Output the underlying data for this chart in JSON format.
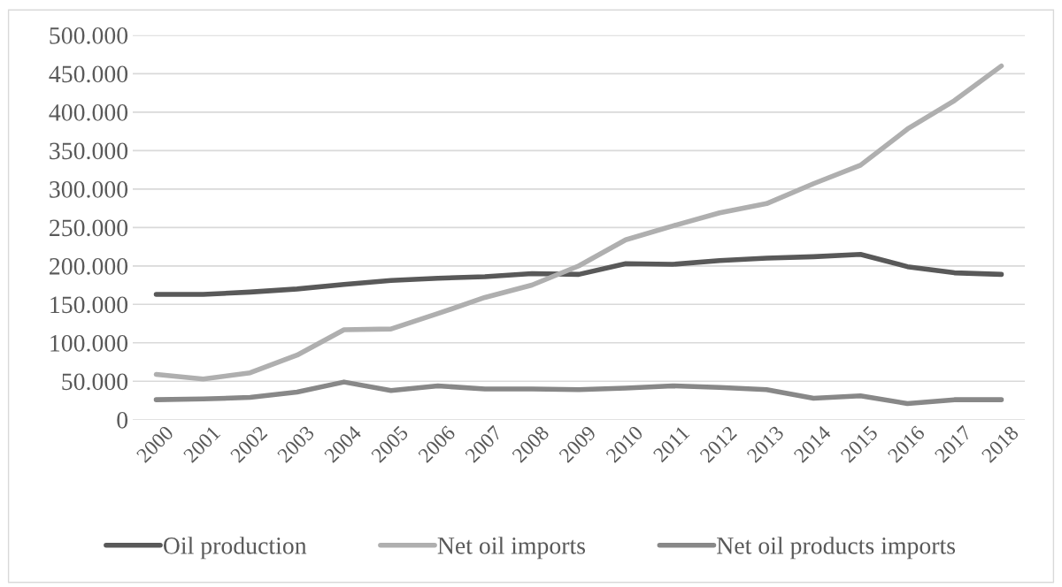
{
  "chart_data": {
    "type": "line",
    "categories": [
      "2000",
      "2001",
      "2002",
      "2003",
      "2004",
      "2005",
      "2006",
      "2007",
      "2008",
      "2009",
      "2010",
      "2011",
      "2012",
      "2013",
      "2014",
      "2015",
      "2016",
      "2017",
      "2018"
    ],
    "series": [
      {
        "name": "Oil production",
        "color": "#595959",
        "values": [
          163000,
          163000,
          166000,
          170000,
          176000,
          181000,
          184000,
          186000,
          190000,
          189000,
          203000,
          202000,
          207000,
          210000,
          212000,
          215000,
          199000,
          191000,
          189000
        ]
      },
      {
        "name": "Net oil imports",
        "color": "#afafaf",
        "values": [
          59000,
          53000,
          61000,
          84000,
          117000,
          118000,
          138000,
          159000,
          175000,
          200000,
          234000,
          252000,
          269000,
          281000,
          307000,
          331000,
          378000,
          415000,
          460000
        ]
      },
      {
        "name": "Net oil products imports",
        "color": "#888888",
        "values": [
          26000,
          27000,
          29000,
          36000,
          49000,
          38000,
          44000,
          40000,
          40000,
          39000,
          41000,
          44000,
          42000,
          39000,
          28000,
          31000,
          21000,
          26000,
          26000
        ]
      }
    ],
    "ylim": [
      0,
      500000
    ],
    "yticks": [
      {
        "value": 0,
        "label": "0"
      },
      {
        "value": 50000,
        "label": "50.000"
      },
      {
        "value": 100000,
        "label": "100.000"
      },
      {
        "value": 150000,
        "label": "150.000"
      },
      {
        "value": 200000,
        "label": "200.000"
      },
      {
        "value": 250000,
        "label": "250.000"
      },
      {
        "value": 300000,
        "label": "300.000"
      },
      {
        "value": 350000,
        "label": "350.000"
      },
      {
        "value": 400000,
        "label": "400.000"
      },
      {
        "value": 450000,
        "label": "450.000"
      },
      {
        "value": 500000,
        "label": "500.000"
      }
    ],
    "grid": "y",
    "legend": "bottom",
    "marker": "none",
    "line_style": "solid"
  }
}
